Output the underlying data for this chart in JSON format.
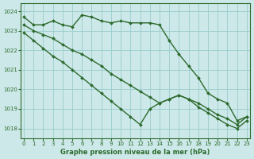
{
  "bg_color": "#cce8e8",
  "grid_color": "#99cccc",
  "line_color": "#2d6a2d",
  "title": "Graphe pression niveau de la mer (hPa)",
  "ylim": [
    1017.5,
    1024.4
  ],
  "yticks": [
    1018,
    1019,
    1020,
    1021,
    1022,
    1023,
    1024
  ],
  "xlim": [
    -0.3,
    23.3
  ],
  "xticks": [
    0,
    1,
    2,
    3,
    4,
    5,
    6,
    7,
    8,
    9,
    10,
    11,
    12,
    13,
    14,
    15,
    16,
    17,
    18,
    19,
    20,
    21,
    22,
    23
  ],
  "series": [
    {
      "x": [
        0,
        1,
        2,
        3,
        4,
        5,
        6,
        7,
        8,
        9,
        10,
        11,
        12,
        13,
        14,
        15,
        16,
        17,
        18,
        19,
        20,
        21,
        22,
        23
      ],
      "y": [
        1023.7,
        1023.3,
        1023.3,
        1023.5,
        1023.3,
        1023.2,
        1023.8,
        1023.7,
        1023.5,
        1023.4,
        1023.5,
        1023.4,
        1023.4,
        1023.4,
        1023.3,
        1022.5,
        1021.8,
        1021.2,
        1020.6,
        1019.8,
        1019.5,
        1019.3,
        1018.4,
        1018.6
      ],
      "marker": "D",
      "markersize": 2.0,
      "linewidth": 1.0
    },
    {
      "x": [
        0,
        1,
        2,
        3,
        4,
        5,
        6,
        7,
        8,
        9,
        10,
        11,
        12,
        13,
        14,
        15,
        16,
        17,
        18,
        19,
        20,
        21,
        22,
        23
      ],
      "y": [
        1023.3,
        1023.0,
        1022.8,
        1022.6,
        1022.3,
        1022.0,
        1021.8,
        1021.5,
        1021.2,
        1020.8,
        1020.5,
        1020.2,
        1019.9,
        1019.6,
        1019.3,
        1019.5,
        1019.7,
        1019.5,
        1019.3,
        1019.0,
        1018.7,
        1018.5,
        1018.2,
        1018.6
      ],
      "marker": "D",
      "markersize": 2.0,
      "linewidth": 1.0
    },
    {
      "x": [
        0,
        1,
        2,
        3,
        4,
        5,
        6,
        7,
        8,
        9,
        10,
        11,
        12,
        13,
        14,
        15,
        16,
        17,
        18,
        19,
        20,
        21,
        22,
        23
      ],
      "y": [
        1022.9,
        1022.5,
        1022.1,
        1021.7,
        1021.4,
        1021.0,
        1020.6,
        1020.2,
        1019.8,
        1019.4,
        1019.0,
        1018.6,
        1018.2,
        1019.0,
        1019.3,
        1019.5,
        1019.7,
        1019.5,
        1019.1,
        1018.8,
        1018.5,
        1018.2,
        1018.0,
        1018.4
      ],
      "marker": "D",
      "markersize": 2.0,
      "linewidth": 1.0
    }
  ]
}
